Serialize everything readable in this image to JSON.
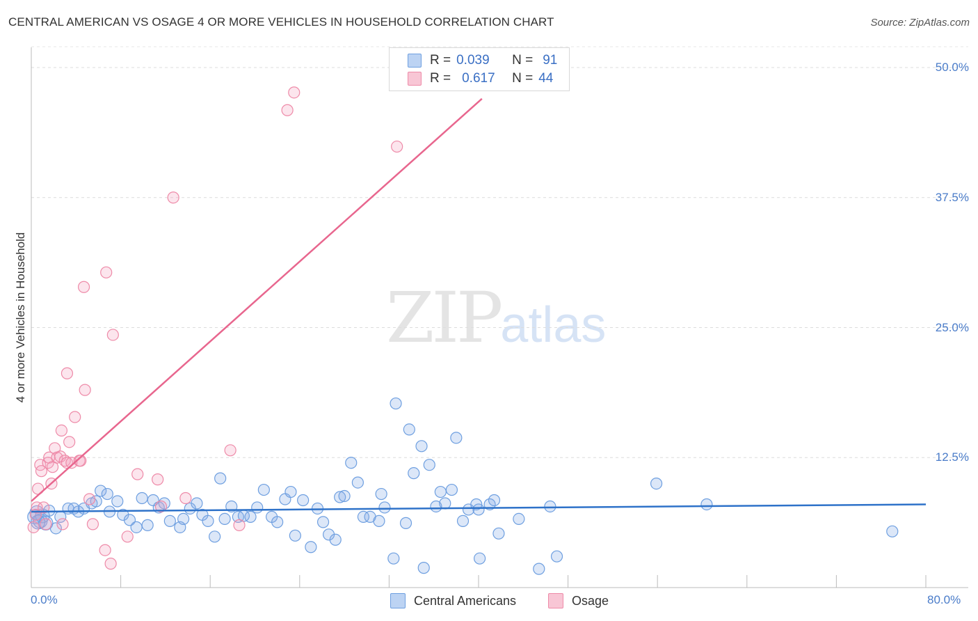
{
  "title": "CENTRAL AMERICAN VS OSAGE 4 OR MORE VEHICLES IN HOUSEHOLD CORRELATION CHART",
  "source": "Source: ZipAtlas.com",
  "watermark": {
    "zip": "ZIP",
    "atlas": "atlas"
  },
  "colors": {
    "blue": "#6e9fe0",
    "pink": "#ee8aa8",
    "blue_line": "#2e72c9",
    "pink_line": "#e8668e",
    "axis_text": "#4a7cc9"
  },
  "legend": {
    "blue": {
      "r_label": "R =",
      "r_value": "0.039",
      "n_label": "N =",
      "n_value": "91"
    },
    "pink": {
      "r_label": "R =",
      "r_value": "0.617",
      "n_label": "N =",
      "n_value": "44"
    }
  },
  "bottom_legend": {
    "blue": "Central Americans",
    "pink": "Osage"
  },
  "chart_data": {
    "type": "scatter",
    "title": "CENTRAL AMERICAN VS OSAGE 4 OR MORE VEHICLES IN HOUSEHOLD CORRELATION CHART",
    "xlabel": "",
    "ylabel": "4 or more Vehicles in Household",
    "xlim": [
      0,
      80
    ],
    "ylim": [
      0,
      52
    ],
    "x_tick_labels": [
      "0.0%",
      "80.0%"
    ],
    "y_ticks": [
      12.5,
      25.0,
      37.5,
      50.0
    ],
    "y_tick_labels": [
      "12.5%",
      "25.0%",
      "37.5%",
      "50.0%"
    ],
    "grid": true,
    "series": [
      {
        "name": "Central Americans",
        "color": "#6e9fe0",
        "trend": [
          [
            0,
            7.3
          ],
          [
            80,
            8.0
          ]
        ],
        "points": [
          [
            0.3,
            6.8
          ],
          [
            0.5,
            7.2
          ],
          [
            0.8,
            6.4
          ],
          [
            1.0,
            6.9
          ],
          [
            1.3,
            6.2
          ],
          [
            1.6,
            7.4
          ],
          [
            2.2,
            5.7
          ],
          [
            2.6,
            6.8
          ],
          [
            3.3,
            7.6
          ],
          [
            3.8,
            7.6
          ],
          [
            4.2,
            7.3
          ],
          [
            4.7,
            7.6
          ],
          [
            5.4,
            8.1
          ],
          [
            5.8,
            8.3
          ],
          [
            6.2,
            9.3
          ],
          [
            6.8,
            9.0
          ],
          [
            7.0,
            7.3
          ],
          [
            7.7,
            8.3
          ],
          [
            8.2,
            7.0
          ],
          [
            8.8,
            6.5
          ],
          [
            9.4,
            5.8
          ],
          [
            9.9,
            8.6
          ],
          [
            10.4,
            6.0
          ],
          [
            10.9,
            8.4
          ],
          [
            11.4,
            7.7
          ],
          [
            11.9,
            8.1
          ],
          [
            12.4,
            6.4
          ],
          [
            13.3,
            5.8
          ],
          [
            13.6,
            6.6
          ],
          [
            14.2,
            7.6
          ],
          [
            14.8,
            8.1
          ],
          [
            15.3,
            7.0
          ],
          [
            15.8,
            6.4
          ],
          [
            16.4,
            4.9
          ],
          [
            16.9,
            10.5
          ],
          [
            17.3,
            6.6
          ],
          [
            17.9,
            7.8
          ],
          [
            18.5,
            6.8
          ],
          [
            19.0,
            6.9
          ],
          [
            19.6,
            6.8
          ],
          [
            20.2,
            7.7
          ],
          [
            20.8,
            9.4
          ],
          [
            21.5,
            6.8
          ],
          [
            22.0,
            6.3
          ],
          [
            22.7,
            8.5
          ],
          [
            23.2,
            9.2
          ],
          [
            23.6,
            5.0
          ],
          [
            24.3,
            8.4
          ],
          [
            25.0,
            3.9
          ],
          [
            25.6,
            7.6
          ],
          [
            26.1,
            6.3
          ],
          [
            26.6,
            5.1
          ],
          [
            27.2,
            4.6
          ],
          [
            27.6,
            8.7
          ],
          [
            28.0,
            8.8
          ],
          [
            28.6,
            12.0
          ],
          [
            29.2,
            10.1
          ],
          [
            29.7,
            6.8
          ],
          [
            30.3,
            6.8
          ],
          [
            31.1,
            6.4
          ],
          [
            31.3,
            9.0
          ],
          [
            31.6,
            7.7
          ],
          [
            32.4,
            2.8
          ],
          [
            32.6,
            17.7
          ],
          [
            33.5,
            6.2
          ],
          [
            33.8,
            15.2
          ],
          [
            34.2,
            11.0
          ],
          [
            34.9,
            13.6
          ],
          [
            35.1,
            1.9
          ],
          [
            35.6,
            11.8
          ],
          [
            36.2,
            7.8
          ],
          [
            36.6,
            9.2
          ],
          [
            37.0,
            8.1
          ],
          [
            37.6,
            9.4
          ],
          [
            38.0,
            14.4
          ],
          [
            38.6,
            6.4
          ],
          [
            39.1,
            7.5
          ],
          [
            39.8,
            8.0
          ],
          [
            40.0,
            7.5
          ],
          [
            40.1,
            2.8
          ],
          [
            41.0,
            8.0
          ],
          [
            41.4,
            8.4
          ],
          [
            41.8,
            5.2
          ],
          [
            43.6,
            6.6
          ],
          [
            45.4,
            1.8
          ],
          [
            46.4,
            7.8
          ],
          [
            47.0,
            3.0
          ],
          [
            55.9,
            10.0
          ],
          [
            60.4,
            8.0
          ],
          [
            77.0,
            5.4
          ],
          [
            0.6,
            6.3
          ]
        ]
      },
      {
        "name": "Osage",
        "color": "#ee8aa8",
        "trend": [
          [
            0,
            8.3
          ],
          [
            40.3,
            47.0
          ]
        ],
        "points": [
          [
            0.2,
            5.8
          ],
          [
            0.5,
            7.7
          ],
          [
            0.6,
            9.5
          ],
          [
            0.8,
            11.8
          ],
          [
            0.9,
            11.2
          ],
          [
            1.1,
            7.7
          ],
          [
            1.3,
            6.1
          ],
          [
            1.5,
            12.0
          ],
          [
            1.6,
            12.5
          ],
          [
            1.8,
            10.0
          ],
          [
            1.9,
            11.6
          ],
          [
            2.1,
            13.4
          ],
          [
            2.3,
            12.5
          ],
          [
            2.6,
            12.6
          ],
          [
            2.8,
            6.1
          ],
          [
            2.7,
            15.1
          ],
          [
            3.0,
            12.2
          ],
          [
            3.2,
            12.0
          ],
          [
            3.2,
            20.6
          ],
          [
            3.4,
            14.0
          ],
          [
            3.6,
            12.0
          ],
          [
            3.9,
            16.4
          ],
          [
            4.3,
            12.2
          ],
          [
            4.4,
            12.2
          ],
          [
            4.7,
            28.9
          ],
          [
            4.8,
            19.0
          ],
          [
            5.2,
            8.5
          ],
          [
            5.5,
            6.1
          ],
          [
            6.6,
            3.6
          ],
          [
            6.7,
            30.3
          ],
          [
            7.1,
            2.3
          ],
          [
            7.3,
            24.3
          ],
          [
            8.6,
            4.9
          ],
          [
            9.5,
            10.9
          ],
          [
            11.3,
            10.4
          ],
          [
            11.6,
            7.8
          ],
          [
            12.7,
            37.5
          ],
          [
            13.8,
            8.6
          ],
          [
            17.8,
            13.2
          ],
          [
            18.6,
            6.0
          ],
          [
            22.9,
            45.9
          ],
          [
            23.5,
            47.6
          ],
          [
            32.7,
            42.4
          ],
          [
            0.4,
            7.0
          ]
        ]
      }
    ]
  }
}
